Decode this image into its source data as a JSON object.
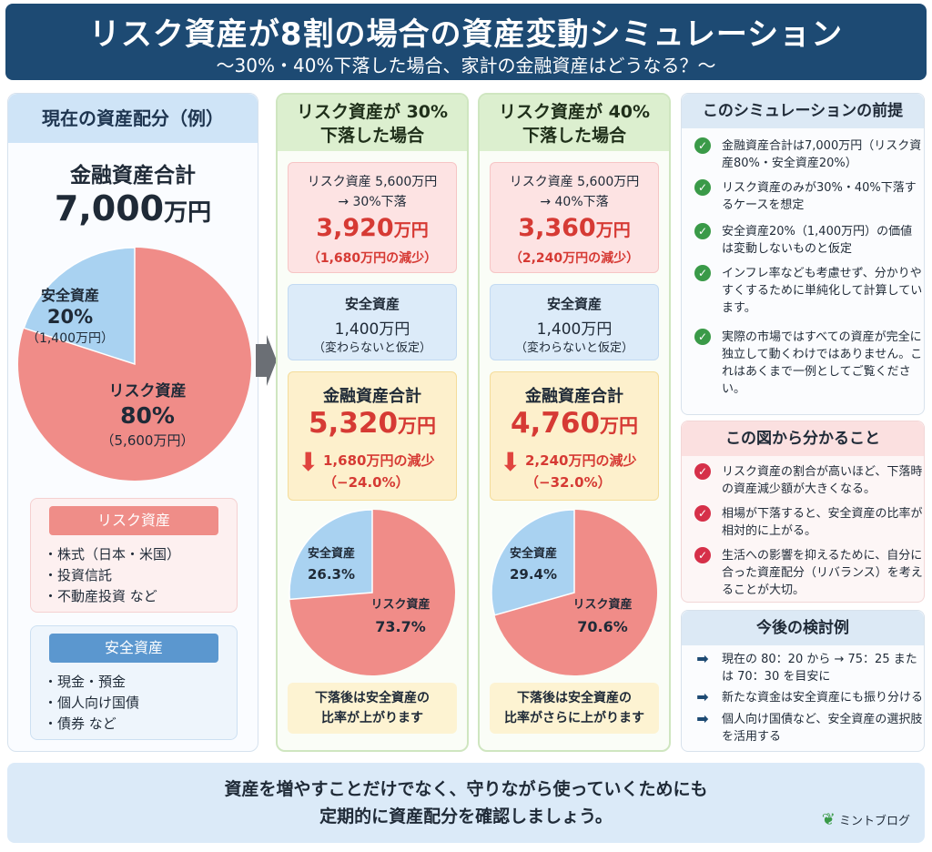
{
  "header": {
    "title": "リスク資産が8割の場合の資産変動シミュレーション",
    "subtitle": "～30%・40%下落した場合、家計の金融資産はどうなる？～"
  },
  "colors": {
    "risk": "#f08c88",
    "safe": "#a9d2f1",
    "header": "#1d4a73",
    "down": "#e0443e"
  },
  "left": {
    "heading": "現在の資産配分（例）",
    "total_label": "金融資産合計",
    "total_value": "7,000",
    "total_unit": "万円",
    "pie": {
      "safe_name": "安全資産",
      "safe_pct": "20%",
      "safe_amt": "（1,400万円）",
      "risk_name": "リスク資産",
      "risk_pct": "80%",
      "risk_amt": "（5,600万円）"
    },
    "risk_box": {
      "title": "リスク資産",
      "items": [
        "・株式（日本・米国）",
        "・投資信託",
        "・不動産投資 など"
      ]
    },
    "safe_box": {
      "title": "安全資産",
      "items": [
        "・現金・預金",
        "・個人向け国債",
        "・債券 など"
      ]
    }
  },
  "scenarios": [
    {
      "title1": "リスク資産が 30%",
      "title2": "下落した場合",
      "risk_line1": "リスク資産 5,600万円",
      "risk_line2": "→ 30%下落",
      "risk_value": "3,920",
      "risk_unit": "万円",
      "risk_loss": "（1,680万円の減少）",
      "safe_label": "安全資産",
      "safe_value": "1,400万円",
      "safe_note": "（変わらないと仮定）",
      "total_label": "金融資産合計",
      "total_value": "5,320",
      "total_unit": "万円",
      "down_arrow": "⬇",
      "down_line1": "1,680万円の減少",
      "down_line2": "（−24.0%）",
      "pie_safe_name": "安全資産",
      "pie_safe_pct": "26.3%",
      "pie_risk_name": "リスク資産",
      "pie_risk_pct": "73.7%",
      "note1": "下落後は安全資産の",
      "note2": "比率が上がります"
    },
    {
      "title1": "リスク資産が 40%",
      "title2": "下落した場合",
      "risk_line1": "リスク資産 5,600万円",
      "risk_line2": "→ 40%下落",
      "risk_value": "3,360",
      "risk_unit": "万円",
      "risk_loss": "（2,240万円の減少）",
      "safe_label": "安全資産",
      "safe_value": "1,400万円",
      "safe_note": "（変わらないと仮定）",
      "total_label": "金融資産合計",
      "total_value": "4,760",
      "total_unit": "万円",
      "down_arrow": "⬇",
      "down_line1": "2,240万円の減少",
      "down_line2": "（−32.0%）",
      "pie_safe_name": "安全資産",
      "pie_safe_pct": "29.4%",
      "pie_risk_name": "リスク資産",
      "pie_risk_pct": "70.6%",
      "note1": "下落後は安全資産の",
      "note2": "比率がさらに上がります"
    }
  ],
  "premise": {
    "title": "このシミュレーションの前提",
    "items": [
      "金融資産合計は7,000万円（リスク資産80%・安全資産20%）",
      "リスク資産のみが30%・40%下落するケースを想定",
      "安全資産20%（1,400万円）の価値は変動しないものと仮定",
      "インフレ率なども考慮せず、分かりやすくするために単純化して計算しています。",
      "実際の市場ではすべての資産が完全に独立して動くわけではありません。これはあくまで一例としてご覧ください。"
    ]
  },
  "insights": {
    "title": "この図から分かること",
    "items": [
      "リスク資産の割合が高いほど、下落時の資産減少額が大きくなる。",
      "相場が下落すると、安全資産の比率が相対的に上がる。",
      "生活への影響を抑えるために、自分に合った資産配分（リバランス）を考えることが大切。"
    ]
  },
  "next": {
    "title": "今後の検討例",
    "items": [
      "現在の 80：20 から → 75：25 または 70：30 を目安に",
      "新たな資金は安全資産にも振り分ける",
      "個人向け国債など、安全資産の選択肢を活用する"
    ]
  },
  "footer": {
    "line1": "資産を増やすことだけでなく、守りながら使っていくためにも",
    "line2": "定期的に資産配分を確認しましょう。",
    "brand": "ミントブログ"
  },
  "chart_data": [
    {
      "type": "pie",
      "categories": [
        "安全資産",
        "リスク資産"
      ],
      "values": [
        20,
        80
      ],
      "amounts_man_yen": [
        1400,
        5600
      ],
      "total_man_yen": 7000
    },
    {
      "type": "pie",
      "categories": [
        "安全資産",
        "リスク資産"
      ],
      "values": [
        26.3,
        73.7
      ],
      "amounts_man_yen": [
        1400,
        3920
      ],
      "total_man_yen": 5320
    },
    {
      "type": "pie",
      "categories": [
        "安全資産",
        "リスク資産"
      ],
      "values": [
        29.4,
        70.6
      ],
      "amounts_man_yen": [
        1400,
        3360
      ],
      "total_man_yen": 4760
    }
  ]
}
